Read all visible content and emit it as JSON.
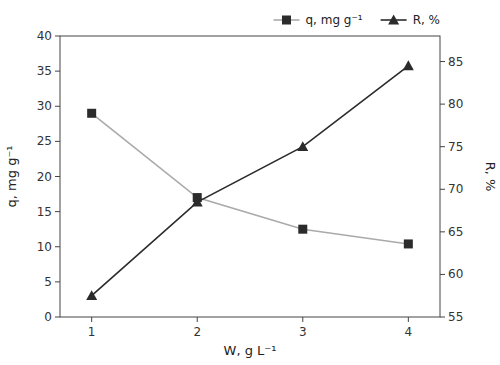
{
  "chart_data": {
    "type": "line",
    "xlabel": "W, g L⁻¹",
    "ylabel": "q, mg g⁻¹",
    "y2label": "R, %",
    "x": [
      1,
      2,
      3,
      4
    ],
    "xlim": [
      0.7,
      4.3
    ],
    "xticks": [
      1,
      2,
      3,
      4
    ],
    "ylim": [
      0,
      40
    ],
    "yticks": [
      0,
      5,
      10,
      15,
      20,
      25,
      30,
      35,
      40
    ],
    "y2lim": [
      55,
      88
    ],
    "y2ticks": [
      55,
      60,
      65,
      70,
      75,
      80,
      85
    ],
    "grid": false,
    "legend": "upper right",
    "series": [
      {
        "name": "q, mg g⁻¹",
        "color": "#aaaaaa",
        "colors": [
          "#2b2b2b",
          "#2b2b2b",
          "#2b2b2b",
          "#2b2b2b"
        ],
        "marker": "square",
        "values": [
          29.0,
          17.0,
          12.5,
          10.4
        ]
      },
      {
        "name": "R, %",
        "color": "#2b2b2b",
        "colors": [
          "#2b2b2b",
          "#2b2b2b",
          "#2b2b2b",
          "#2b2b2b"
        ],
        "marker": "triangle",
        "axis": "y2",
        "values": [
          57.5,
          68.5,
          75.0,
          84.5
        ]
      }
    ]
  }
}
